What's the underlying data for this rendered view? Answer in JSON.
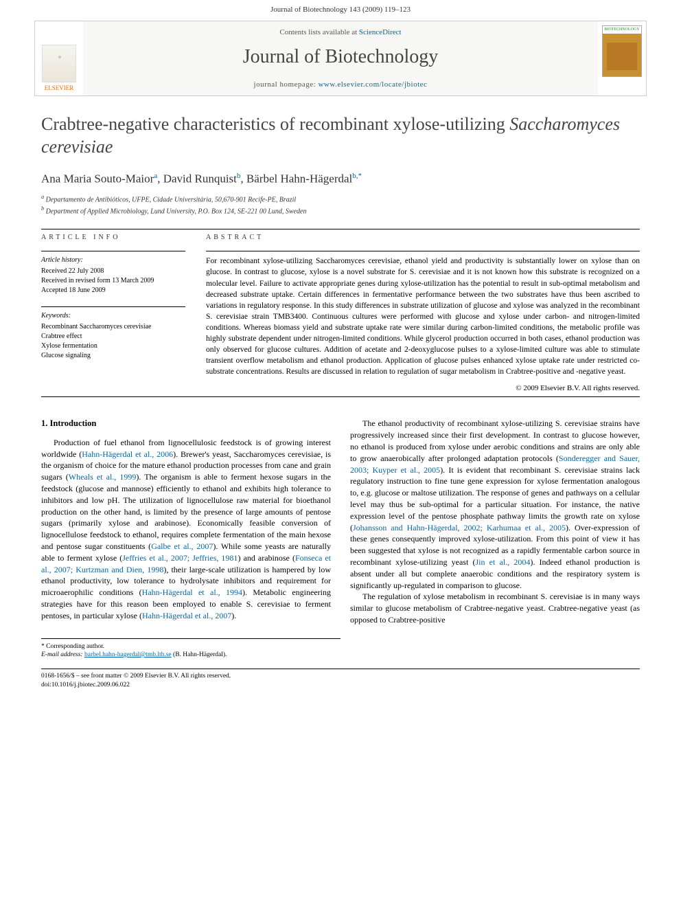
{
  "page_header": "Journal of Biotechnology 143 (2009) 119–123",
  "banner": {
    "contents_prefix": "Contents lists available at ",
    "contents_link": "ScienceDirect",
    "journal_name": "Journal of Biotechnology",
    "homepage_prefix": "journal homepage: ",
    "homepage_url": "www.elsevier.com/locate/jbiotec",
    "elsevier_label": "ELSEVIER",
    "cover_label": "BIOTECHNOLOGY"
  },
  "article": {
    "title_pre": "Crabtree-negative characteristics of recombinant xylose-utilizing ",
    "title_em": "Saccharomyces cerevisiae",
    "authors_html": "Ana Maria Souto-Maior|a|, David Runquist|b|, Bärbel Hahn-Hägerdal|b,*|",
    "affiliations": [
      "a Departamento de Antibióticos, UFPE, Cidade Universitária, 50,670-901 Recife-PE, Brazil",
      "b Department of Applied Microbiology, Lund University, P.O. Box 124, SE-221 00 Lund, Sweden"
    ]
  },
  "info": {
    "heading": "article info",
    "history_label": "Article history:",
    "history": [
      "Received 22 July 2008",
      "Received in revised form 13 March 2009",
      "Accepted 18 June 2009"
    ],
    "keywords_label": "Keywords:",
    "keywords": [
      "Recombinant Saccharomyces cerevisiae",
      "Crabtree effect",
      "Xylose fermentation",
      "Glucose signaling"
    ]
  },
  "abstract": {
    "heading": "abstract",
    "text": "For recombinant xylose-utilizing Saccharomyces cerevisiae, ethanol yield and productivity is substantially lower on xylose than on glucose. In contrast to glucose, xylose is a novel substrate for S. cerevisiae and it is not known how this substrate is recognized on a molecular level. Failure to activate appropriate genes during xylose-utilization has the potential to result in sub-optimal metabolism and decreased substrate uptake. Certain differences in fermentative performance between the two substrates have thus been ascribed to variations in regulatory response. In this study differences in substrate utilization of glucose and xylose was analyzed in the recombinant S. cerevisiae strain TMB3400. Continuous cultures were performed with glucose and xylose under carbon- and nitrogen-limited conditions. Whereas biomass yield and substrate uptake rate were similar during carbon-limited conditions, the metabolic profile was highly substrate dependent under nitrogen-limited conditions. While glycerol production occurred in both cases, ethanol production was only observed for glucose cultures. Addition of acetate and 2-deoxyglucose pulses to a xylose-limited culture was able to stimulate transient overflow metabolism and ethanol production. Application of glucose pulses enhanced xylose uptake rate under restricted co-substrate concentrations. Results are discussed in relation to regulation of sugar metabolism in Crabtree-positive and -negative yeast.",
    "copyright": "© 2009 Elsevier B.V. All rights reserved."
  },
  "body": {
    "section1": "1. Introduction",
    "p1a": "Production of fuel ethanol from lignocellulosic feedstock is of growing interest worldwide (",
    "c1": "Hahn-Hägerdal et al., 2006",
    "p1b": "). Brewer's yeast, Saccharomyces cerevisiae, is the organism of choice for the mature ethanol production processes from cane and grain sugars (",
    "c2": "Wheals et al., 1999",
    "p1c": "). The organism is able to ferment hexose sugars in the feedstock (glucose and mannose) efficiently to ethanol and exhibits high tolerance to inhibitors and low pH. The utilization of lignocellulose raw material for bioethanol production on the other hand, is limited by the presence of large amounts of pentose sugars (primarily xylose and arabinose). Economically feasible conversion of lignocellulose feedstock to ethanol, requires complete fermentation of the main hexose and pentose sugar constituents (",
    "c3": "Galbe et al., 2007",
    "p1d": "). While some yeasts are naturally able to ferment xylose (",
    "c4": "Jeffries et al., 2007; Jeffries, 1981",
    "p1e": ") and arabinose (",
    "c5": "Fonseca et al., 2007; Kurtzman and Dien, 1998",
    "p1f": "), their large-scale utilization is hampered by low ethanol productivity, low tolerance to hydrolysate inhibitors and requirement for microaerophilic conditions (",
    "c6": "Hahn-Hägerdal et al., 1994",
    "p1g": "). Metabolic engineering strategies have for this reason been employed to enable S. cerevisiae to ferment pentoses, in particular xylose (",
    "c7": "Hahn-Hägerdal et al., 2007",
    "p1h": ").",
    "p2a": "The ethanol productivity of recombinant xylose-utilizing S. cerevisiae strains have progressively increased since their first development. In contrast to glucose however, no ethanol is produced from xylose under aerobic conditions and strains are only able to grow anaerobically after prolonged adaptation protocols (",
    "c8": "Sonderegger and Sauer, 2003; Kuyper et al., 2005",
    "p2b": "). It is evident that recombinant S. cerevisiae strains lack regulatory instruction to fine tune gene expression for xylose fermentation analogous to, e.g. glucose or maltose utilization. The response of genes and pathways on a cellular level may thus be sub-optimal for a particular situation. For instance, the native expression level of the pentose phosphate pathway limits the growth rate on xylose (",
    "c9": "Johansson and Hahn-Hägerdal, 2002; Karhumaa et al., 2005",
    "p2c": "). Over-expression of these genes consequently improved xylose-utilization. From this point of view it has been suggested that xylose is not recognized as a rapidly fermentable carbon source in recombinant xylose-utilizing yeast (",
    "c10": "Jin et al., 2004",
    "p2d": "). Indeed ethanol production is absent under all but complete anaerobic conditions and the respiratory system is significantly up-regulated in comparison to glucose.",
    "p3": "The regulation of xylose metabolism in recombinant S. cerevisiae is in many ways similar to glucose metabolism of Crabtree-negative yeast. Crabtree-negative yeast (as opposed to Crabtree-positive"
  },
  "footnote": {
    "corr": "* Corresponding author.",
    "email_label": "E-mail address: ",
    "email": "barbel.hahn-hagerdal@tmb.lth.se",
    "email_who": " (B. Hahn-Hägerdal)."
  },
  "footer": {
    "line1": "0168-1656/$ – see front matter © 2009 Elsevier B.V. All rights reserved.",
    "line2": "doi:10.1016/j.jbiotec.2009.06.022"
  },
  "colors": {
    "link": "#0066aa",
    "text": "#000000",
    "heading": "#444444"
  }
}
